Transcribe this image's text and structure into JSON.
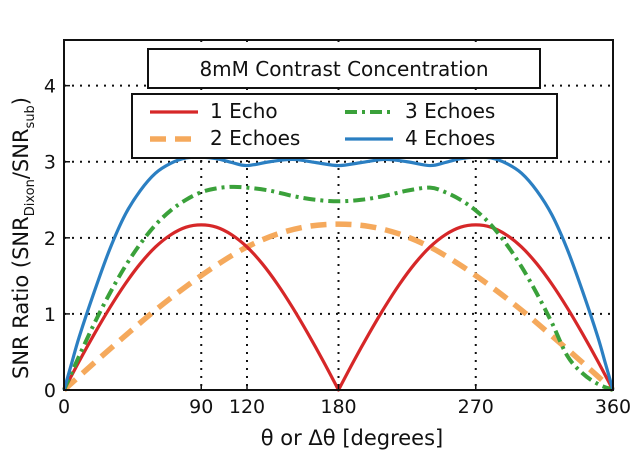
{
  "chart_data": {
    "type": "line",
    "title": "8mM Contrast Concentration",
    "xlabel": "θ or Δθ [degrees]",
    "ylabel_main": "SNR Ratio (SNR",
    "ylabel_sub1": "Dixon",
    "ylabel_mid": "/SNR",
    "ylabel_sub2": "sub",
    "ylabel_end": ")",
    "xlim": [
      0,
      360
    ],
    "ylim": [
      0,
      4.6
    ],
    "xticks": [
      0,
      90,
      120,
      180,
      270,
      360
    ],
    "xtick_labels": [
      "0",
      "90",
      "120",
      "180",
      "270",
      "360"
    ],
    "yticks": [
      0,
      1,
      2,
      3,
      4
    ],
    "ytick_labels": [
      "0",
      "1",
      "2",
      "3",
      "4"
    ],
    "grid": "dotted",
    "legend_placement": "top-center",
    "series": [
      {
        "name": "1 Echo",
        "color": "#d62728",
        "style": "solid",
        "x": [
          0,
          10,
          20,
          30,
          40,
          50,
          60,
          70,
          80,
          90,
          100,
          110,
          120,
          130,
          140,
          150,
          160,
          170,
          180,
          190,
          200,
          210,
          220,
          230,
          240,
          250,
          260,
          270,
          280,
          290,
          300,
          310,
          320,
          330,
          340,
          350,
          360
        ],
        "y": [
          0,
          0.38,
          0.74,
          1.08,
          1.39,
          1.66,
          1.88,
          2.04,
          2.14,
          2.17,
          2.14,
          2.04,
          1.88,
          1.66,
          1.39,
          1.08,
          0.74,
          0.38,
          0,
          0.38,
          0.74,
          1.08,
          1.39,
          1.66,
          1.88,
          2.04,
          2.14,
          2.17,
          2.14,
          2.04,
          1.88,
          1.66,
          1.39,
          1.08,
          0.74,
          0.38,
          0
        ]
      },
      {
        "name": "2 Echoes",
        "color": "#f5a95c",
        "style": "dashed",
        "x": [
          0,
          20,
          40,
          60,
          80,
          100,
          120,
          140,
          160,
          180,
          200,
          220,
          240,
          260,
          280,
          300,
          320,
          340,
          360
        ],
        "y": [
          0,
          0.36,
          0.71,
          1.05,
          1.36,
          1.64,
          1.88,
          2.05,
          2.15,
          2.18,
          2.15,
          2.05,
          1.88,
          1.64,
          1.36,
          1.05,
          0.71,
          0.36,
          0
        ]
      },
      {
        "name": "3 Echoes",
        "color": "#3aa13a",
        "style": "dashdot",
        "x": [
          0,
          10,
          20,
          30,
          40,
          50,
          60,
          70,
          80,
          90,
          100,
          110,
          120,
          135,
          150,
          165,
          180,
          195,
          210,
          225,
          240,
          250,
          260,
          270,
          280,
          290,
          300,
          310,
          320,
          330,
          340,
          350,
          360
        ],
        "y": [
          0,
          0.45,
          0.88,
          1.27,
          1.62,
          1.92,
          2.17,
          2.36,
          2.5,
          2.6,
          2.65,
          2.67,
          2.66,
          2.62,
          2.55,
          2.5,
          2.48,
          2.5,
          2.55,
          2.62,
          2.66,
          2.6,
          2.5,
          2.36,
          2.17,
          1.92,
          1.62,
          1.27,
          0.88,
          0.45,
          0.22,
          0.08,
          0
        ]
      },
      {
        "name": "4 Echoes",
        "color": "#2b7fc2",
        "style": "solid",
        "x": [
          0,
          5,
          10,
          20,
          30,
          40,
          50,
          60,
          70,
          80,
          90,
          100,
          110,
          120,
          135,
          150,
          165,
          180,
          195,
          210,
          225,
          240,
          250,
          260,
          270,
          280,
          290,
          300,
          310,
          320,
          330,
          340,
          350,
          355,
          360
        ],
        "y": [
          0,
          0.35,
          0.7,
          1.3,
          1.85,
          2.3,
          2.62,
          2.85,
          2.98,
          3.05,
          3.06,
          3.04,
          2.99,
          2.95,
          3.0,
          3.03,
          2.99,
          2.95,
          2.99,
          3.03,
          3.0,
          2.95,
          2.99,
          3.04,
          3.06,
          3.05,
          2.98,
          2.85,
          2.62,
          2.3,
          1.85,
          1.3,
          0.7,
          0.35,
          0
        ]
      }
    ]
  }
}
